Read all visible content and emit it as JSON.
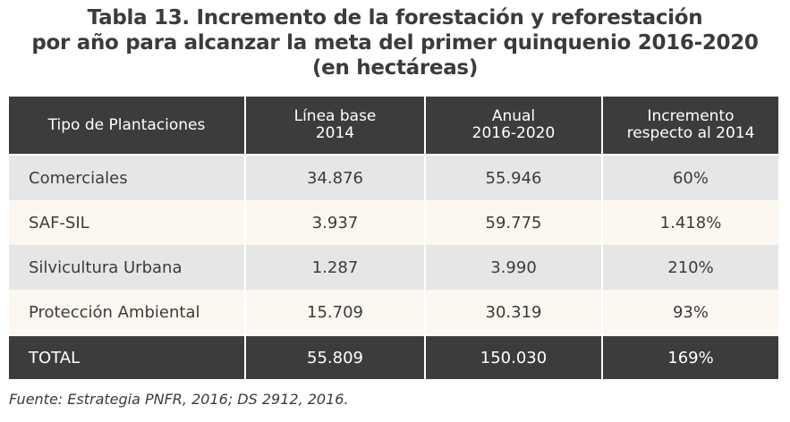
{
  "title": {
    "line1": "Tabla 13. Incremento de la forestación y reforestación",
    "line2": "por año para alcanzar la meta del primer quinquenio 2016-2020",
    "line3": "(en hectáreas)"
  },
  "table": {
    "headers": [
      {
        "line1": "Tipo de Plantaciones",
        "line2": ""
      },
      {
        "line1": "Línea base",
        "line2": "2014"
      },
      {
        "line1": "Anual",
        "line2": "2016-2020"
      },
      {
        "line1": "Incremento",
        "line2": "respecto al 2014"
      }
    ],
    "rows": [
      [
        "Comerciales",
        "34.876",
        "55.946",
        "60%"
      ],
      [
        "SAF-SIL",
        "3.937",
        "59.775",
        "1.418%"
      ],
      [
        "Silvicultura Urbana",
        "1.287",
        "3.990",
        "210%"
      ],
      [
        "Protección Ambiental",
        "15.709",
        "30.319",
        "93%"
      ]
    ],
    "total": [
      "TOTAL",
      "55.809",
      "150.030",
      "169%"
    ]
  },
  "source": "Fuente: Estrategia PNFR, 2016; DS 2912, 2016.",
  "colors": {
    "header_bg": "#3e3c3b",
    "row_odd_bg": "#e6e6e6",
    "row_even_bg": "#fcf7f1",
    "text": "#3c3b39"
  }
}
